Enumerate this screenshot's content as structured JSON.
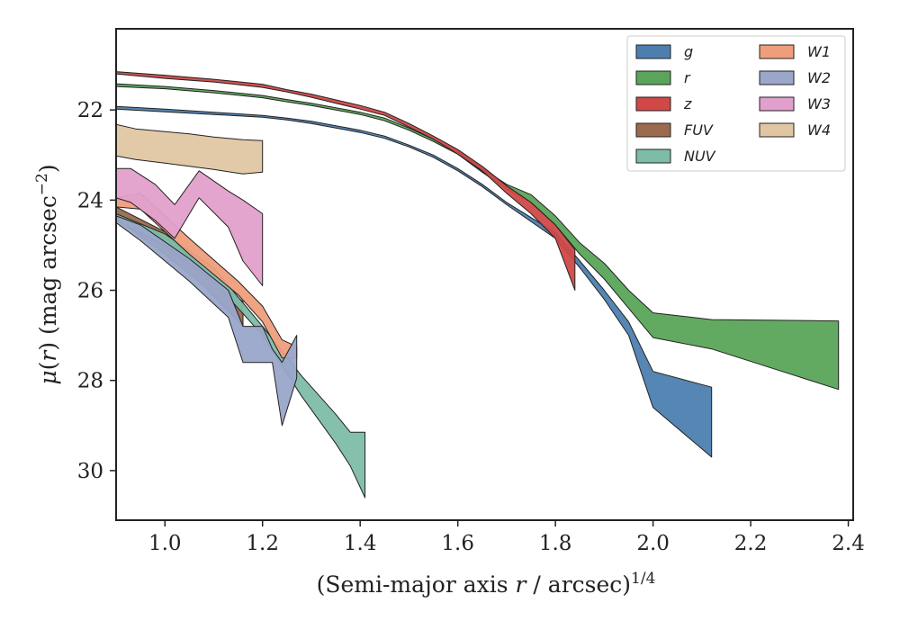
{
  "chart_data": {
    "type": "area",
    "title": "",
    "xlabel": "(Semi-major axis r / arcsec)^1/4",
    "ylabel": "μ(r) (mag arcsec^-2)",
    "xlim": [
      0.9,
      2.41
    ],
    "ylim": [
      31.1,
      20.2
    ],
    "y_inverted": true,
    "x_ticks": [
      "1.0",
      "1.2",
      "1.4",
      "1.6",
      "1.8",
      "2.0",
      "2.2",
      "2.4"
    ],
    "y_ticks": [
      "22",
      "24",
      "26",
      "28",
      "30"
    ],
    "legend_position": "top-right",
    "legend_columns": 2,
    "series": [
      {
        "name": "g",
        "color": "#4c7fb0",
        "x": [
          0.9,
          1.0,
          1.1,
          1.2,
          1.25,
          1.3,
          1.4,
          1.45,
          1.5,
          1.55,
          1.6,
          1.65,
          1.7,
          1.8,
          1.85,
          1.9,
          1.95,
          2.0,
          2.12
        ],
        "y_upper": [
          21.92,
          21.98,
          22.05,
          22.12,
          22.18,
          22.25,
          22.45,
          22.58,
          22.78,
          23.0,
          23.3,
          23.65,
          24.05,
          24.72,
          25.35,
          26.0,
          26.7,
          27.8,
          28.15
        ],
        "y_lower": [
          21.98,
          22.04,
          22.1,
          22.16,
          22.22,
          22.3,
          22.5,
          22.63,
          22.82,
          23.05,
          23.35,
          23.7,
          24.1,
          24.85,
          25.5,
          26.2,
          27.0,
          28.6,
          29.7
        ]
      },
      {
        "name": "r",
        "color": "#5aa55a",
        "x": [
          0.9,
          1.0,
          1.1,
          1.2,
          1.25,
          1.3,
          1.4,
          1.45,
          1.5,
          1.55,
          1.6,
          1.65,
          1.7,
          1.75,
          1.8,
          1.85,
          1.9,
          1.95,
          2.0,
          2.12,
          2.38
        ],
        "y_upper": [
          21.42,
          21.48,
          21.57,
          21.68,
          21.77,
          21.85,
          22.05,
          22.18,
          22.4,
          22.65,
          22.92,
          23.3,
          23.65,
          23.88,
          24.35,
          24.95,
          25.4,
          26.0,
          26.5,
          26.65,
          26.68
        ],
        "y_lower": [
          21.48,
          21.53,
          21.62,
          21.73,
          21.82,
          21.9,
          22.1,
          22.24,
          22.45,
          22.7,
          22.98,
          23.38,
          23.75,
          24.05,
          24.55,
          25.2,
          25.75,
          26.4,
          27.05,
          27.3,
          28.2
        ]
      },
      {
        "name": "z",
        "color": "#d04848",
        "x": [
          0.9,
          1.0,
          1.1,
          1.2,
          1.25,
          1.3,
          1.4,
          1.45,
          1.5,
          1.55,
          1.6,
          1.65,
          1.7,
          1.75,
          1.8,
          1.84
        ],
        "y_upper": [
          21.15,
          21.23,
          21.32,
          21.43,
          21.55,
          21.65,
          21.9,
          22.05,
          22.3,
          22.58,
          22.88,
          23.25,
          23.68,
          24.05,
          24.55,
          25.1
        ],
        "y_lower": [
          21.2,
          21.3,
          21.38,
          21.5,
          21.6,
          21.72,
          21.98,
          22.12,
          22.38,
          22.65,
          22.98,
          23.35,
          23.85,
          24.3,
          24.85,
          26.0
        ]
      },
      {
        "name": "FUV",
        "color": "#9c6a4e",
        "x": [
          0.9,
          1.0,
          1.08,
          1.16
        ],
        "y_upper": [
          24.15,
          24.7,
          25.55,
          26.25
        ],
        "y_lower": [
          24.4,
          25.2,
          25.9,
          26.8
        ]
      },
      {
        "name": "NUV",
        "color": "#7dbda8",
        "x": [
          0.9,
          1.0,
          1.1,
          1.2,
          1.28,
          1.35,
          1.38,
          1.41
        ],
        "y_upper": [
          24.3,
          24.75,
          25.5,
          26.8,
          27.9,
          28.75,
          29.15,
          29.15
        ],
        "y_lower": [
          24.45,
          25.0,
          25.8,
          27.0,
          28.35,
          29.4,
          29.9,
          30.6
        ]
      },
      {
        "name": "W1",
        "color": "#ef9e7b",
        "x": [
          0.9,
          0.95,
          1.05,
          1.15,
          1.2,
          1.24,
          1.27
        ],
        "y_upper": [
          23.95,
          23.85,
          24.85,
          25.8,
          26.35,
          27.1,
          27.25
        ],
        "y_lower": [
          24.15,
          24.2,
          25.2,
          26.1,
          26.7,
          27.5,
          27.5
        ]
      },
      {
        "name": "W2",
        "color": "#9aa7ca",
        "x": [
          0.9,
          0.95,
          1.05,
          1.13,
          1.16,
          1.2,
          1.22,
          1.24,
          1.27
        ],
        "y_upper": [
          24.35,
          24.55,
          25.3,
          26.0,
          26.8,
          26.8,
          27.3,
          27.6,
          27.0
        ],
        "y_lower": [
          24.5,
          24.9,
          25.8,
          26.6,
          27.6,
          27.6,
          27.6,
          29.0,
          27.95
        ]
      },
      {
        "name": "W3",
        "color": "#e1a0cb",
        "x": [
          0.9,
          0.93,
          0.98,
          1.02,
          1.07,
          1.13,
          1.16,
          1.2
        ],
        "y_upper": [
          23.3,
          23.3,
          23.65,
          24.1,
          23.35,
          23.8,
          24.0,
          24.3
        ],
        "y_lower": [
          23.95,
          24.05,
          24.45,
          24.85,
          23.95,
          24.6,
          25.35,
          25.9
        ]
      },
      {
        "name": "W4",
        "color": "#e0c6a3",
        "x": [
          0.9,
          0.94,
          1.0,
          1.05,
          1.1,
          1.16,
          1.2
        ],
        "y_upper": [
          22.32,
          22.42,
          22.48,
          22.53,
          22.6,
          22.66,
          22.68
        ],
        "y_lower": [
          23.02,
          23.1,
          23.18,
          23.25,
          23.32,
          23.42,
          23.38
        ]
      }
    ]
  }
}
